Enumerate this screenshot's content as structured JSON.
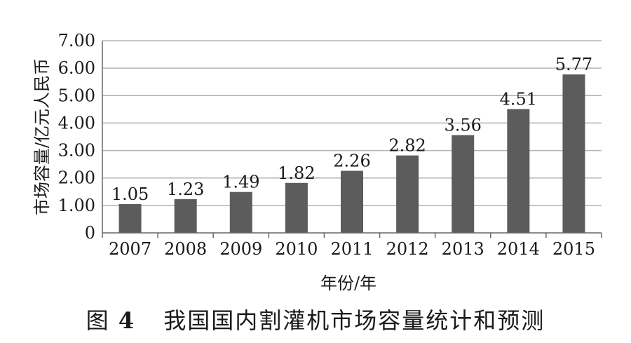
{
  "caption": {
    "label": "图",
    "number": "4",
    "text": "我国国内割灌机市场容量统计和预测"
  },
  "chart_data": {
    "type": "bar",
    "xlabel": "年份/年",
    "ylabel": "市场容量/亿元人民币",
    "categories": [
      "2007",
      "2008",
      "2009",
      "2010",
      "2011",
      "2012",
      "2013",
      "2014",
      "2015"
    ],
    "values": [
      1.05,
      1.23,
      1.49,
      1.82,
      2.26,
      2.82,
      3.56,
      4.51,
      5.77
    ],
    "data_labels": [
      "1.05",
      "1.23",
      "1.49",
      "1.82",
      "2.26",
      "2.82",
      "3.56",
      "4.51",
      "5.77"
    ],
    "ylim": [
      0,
      7
    ],
    "yticks": [
      0,
      1,
      2,
      3,
      4,
      5,
      6,
      7
    ],
    "ytick_labels": [
      "0",
      "1.00",
      "2.00",
      "3.00",
      "4.00",
      "5.00",
      "6.00",
      "7.00"
    ],
    "grid": true,
    "colors": {
      "bar": "#5c5c5c",
      "grid": "#b3b3b3",
      "axis": "#666666"
    }
  }
}
